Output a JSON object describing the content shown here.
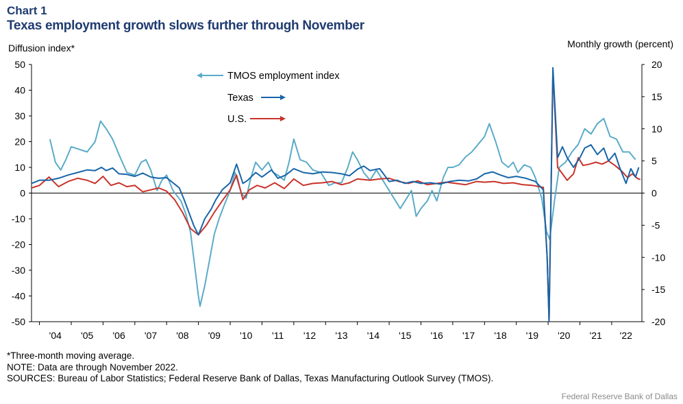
{
  "header": {
    "chart_label": "Chart 1",
    "title": "Texas employment growth slows further through November"
  },
  "footer": {
    "note_1": "*Three-month moving average.",
    "note_2": "NOTE: Data are through November 2022.",
    "note_3": "SOURCES: Bureau of Labor Statistics; Federal Reserve Bank of Dallas, Texas Manufacturing Outlook Survey (TMOS).",
    "credit": "Federal Reserve Bank of Dallas"
  },
  "colors": {
    "tmos": "#5aabc8",
    "texas": "#1765a8",
    "us": "#c8322a",
    "axis": "#000000"
  },
  "chart_data": {
    "type": "line",
    "xlabel": "",
    "ylabel_left": "Diffusion index*",
    "ylabel_right": "Monthly growth (percent)",
    "x_range": [
      2003.75,
      2022.95
    ],
    "ylim_left": [
      -50,
      50
    ],
    "ylim_right": [
      -20,
      20
    ],
    "yticks_left": [
      "50",
      "40",
      "30",
      "20",
      "10",
      "0",
      "-10",
      "-20",
      "-30",
      "-40",
      "-50"
    ],
    "yticks_right": [
      "20",
      "15",
      "10",
      "5",
      "0",
      "-5",
      "-10",
      "-15",
      "-20"
    ],
    "x_ticks": [
      {
        "label": "'04",
        "at": 2004.5
      },
      {
        "label": "'05",
        "at": 2005.5
      },
      {
        "label": "'06",
        "at": 2006.5
      },
      {
        "label": "'07",
        "at": 2007.5
      },
      {
        "label": "'08",
        "at": 2008.5
      },
      {
        "label": "'09",
        "at": 2009.5
      },
      {
        "label": "'10",
        "at": 2010.5
      },
      {
        "label": "'11",
        "at": 2011.5
      },
      {
        "label": "'12",
        "at": 2012.5
      },
      {
        "label": "'13",
        "at": 2013.5
      },
      {
        "label": "'14",
        "at": 2014.5
      },
      {
        "label": "'15",
        "at": 2015.5
      },
      {
        "label": "'16",
        "at": 2016.5
      },
      {
        "label": "'17",
        "at": 2017.5
      },
      {
        "label": "'18",
        "at": 2018.5
      },
      {
        "label": "'19",
        "at": 2019.5
      },
      {
        "label": "'20",
        "at": 2020.5
      },
      {
        "label": "'21",
        "at": 2021.5
      },
      {
        "label": "'22",
        "at": 2022.45
      }
    ],
    "legend": {
      "placement": "top-left inside plot",
      "entries": [
        "TMOS employment index",
        "Texas",
        "U.S."
      ]
    },
    "series": [
      {
        "name": "TMOS employment index",
        "axis": "left",
        "points": [
          [
            2004.33,
            21
          ],
          [
            2004.5,
            12
          ],
          [
            2004.67,
            9
          ],
          [
            2004.83,
            13
          ],
          [
            2005.0,
            18
          ],
          [
            2005.25,
            17
          ],
          [
            2005.5,
            16
          ],
          [
            2005.75,
            20
          ],
          [
            2005.92,
            28
          ],
          [
            2006.1,
            25
          ],
          [
            2006.3,
            21
          ],
          [
            2006.5,
            15
          ],
          [
            2006.75,
            8
          ],
          [
            2007.0,
            7
          ],
          [
            2007.2,
            12
          ],
          [
            2007.35,
            13
          ],
          [
            2007.5,
            9
          ],
          [
            2007.7,
            1
          ],
          [
            2007.85,
            5
          ],
          [
            2008.0,
            7
          ],
          [
            2008.2,
            1
          ],
          [
            2008.45,
            -3
          ],
          [
            2008.6,
            -8
          ],
          [
            2008.75,
            -15
          ],
          [
            2008.9,
            -30
          ],
          [
            2009.0,
            -40
          ],
          [
            2009.05,
            -44
          ],
          [
            2009.2,
            -36
          ],
          [
            2009.35,
            -26
          ],
          [
            2009.5,
            -16
          ],
          [
            2009.65,
            -10
          ],
          [
            2009.8,
            -5
          ],
          [
            2010.0,
            1
          ],
          [
            2010.15,
            8
          ],
          [
            2010.35,
            0
          ],
          [
            2010.5,
            -2
          ],
          [
            2010.65,
            6
          ],
          [
            2010.8,
            12
          ],
          [
            2011.0,
            9
          ],
          [
            2011.2,
            12
          ],
          [
            2011.35,
            8
          ],
          [
            2011.5,
            7
          ],
          [
            2011.7,
            5
          ],
          [
            2011.85,
            12
          ],
          [
            2012.0,
            21
          ],
          [
            2012.2,
            13
          ],
          [
            2012.4,
            12
          ],
          [
            2012.6,
            9
          ],
          [
            2012.85,
            8
          ],
          [
            2013.1,
            3
          ],
          [
            2013.3,
            4
          ],
          [
            2013.5,
            4
          ],
          [
            2013.7,
            10
          ],
          [
            2013.85,
            16
          ],
          [
            2014.0,
            13
          ],
          [
            2014.2,
            8
          ],
          [
            2014.4,
            5
          ],
          [
            2014.6,
            9
          ],
          [
            2014.8,
            5
          ],
          [
            2015.0,
            1
          ],
          [
            2015.2,
            -3
          ],
          [
            2015.35,
            -6
          ],
          [
            2015.5,
            -3
          ],
          [
            2015.7,
            1
          ],
          [
            2015.85,
            -9
          ],
          [
            2016.0,
            -6
          ],
          [
            2016.2,
            -3
          ],
          [
            2016.35,
            1
          ],
          [
            2016.5,
            -3
          ],
          [
            2016.7,
            6
          ],
          [
            2016.85,
            10
          ],
          [
            2017.0,
            10
          ],
          [
            2017.2,
            11
          ],
          [
            2017.4,
            14
          ],
          [
            2017.6,
            16
          ],
          [
            2017.8,
            19
          ],
          [
            2018.0,
            22
          ],
          [
            2018.15,
            27
          ],
          [
            2018.35,
            20
          ],
          [
            2018.55,
            12
          ],
          [
            2018.75,
            10
          ],
          [
            2018.9,
            12
          ],
          [
            2019.05,
            8
          ],
          [
            2019.25,
            11
          ],
          [
            2019.45,
            10
          ],
          [
            2019.6,
            6
          ],
          [
            2019.8,
            -2
          ],
          [
            2019.95,
            -15
          ],
          [
            2020.05,
            -18
          ],
          [
            2020.2,
            -3
          ],
          [
            2020.35,
            10
          ],
          [
            2020.55,
            12
          ],
          [
            2020.75,
            16
          ],
          [
            2020.95,
            19
          ],
          [
            2021.15,
            25
          ],
          [
            2021.35,
            23
          ],
          [
            2021.55,
            27
          ],
          [
            2021.75,
            29
          ],
          [
            2021.95,
            22
          ],
          [
            2022.15,
            21
          ],
          [
            2022.35,
            16
          ],
          [
            2022.55,
            16
          ],
          [
            2022.75,
            13
          ]
        ]
      },
      {
        "name": "Texas",
        "axis": "right",
        "points": [
          [
            2003.75,
            1.5
          ],
          [
            2004.0,
            2.0
          ],
          [
            2004.3,
            2.0
          ],
          [
            2004.6,
            2.3
          ],
          [
            2004.9,
            2.8
          ],
          [
            2005.2,
            3.2
          ],
          [
            2005.5,
            3.6
          ],
          [
            2005.75,
            3.5
          ],
          [
            2005.95,
            4.0
          ],
          [
            2006.1,
            3.5
          ],
          [
            2006.3,
            3.9
          ],
          [
            2006.5,
            3.0
          ],
          [
            2006.75,
            2.9
          ],
          [
            2007.0,
            2.6
          ],
          [
            2007.25,
            3.1
          ],
          [
            2007.5,
            2.5
          ],
          [
            2007.75,
            2.3
          ],
          [
            2008.0,
            2.4
          ],
          [
            2008.2,
            1.6
          ],
          [
            2008.4,
            0.8
          ],
          [
            2008.55,
            -1.0
          ],
          [
            2008.7,
            -3.0
          ],
          [
            2008.85,
            -5.0
          ],
          [
            2009.0,
            -6.5
          ],
          [
            2009.2,
            -4.0
          ],
          [
            2009.4,
            -2.5
          ],
          [
            2009.55,
            -1.0
          ],
          [
            2009.75,
            0.5
          ],
          [
            2010.0,
            1.6
          ],
          [
            2010.2,
            4.5
          ],
          [
            2010.4,
            1.5
          ],
          [
            2010.55,
            2.0
          ],
          [
            2010.8,
            3.2
          ],
          [
            2011.0,
            2.5
          ],
          [
            2011.3,
            3.6
          ],
          [
            2011.5,
            2.3
          ],
          [
            2011.75,
            2.8
          ],
          [
            2012.0,
            3.8
          ],
          [
            2012.3,
            3.2
          ],
          [
            2012.6,
            3.0
          ],
          [
            2012.9,
            3.3
          ],
          [
            2013.2,
            3.2
          ],
          [
            2013.5,
            3.0
          ],
          [
            2013.75,
            2.7
          ],
          [
            2014.0,
            3.7
          ],
          [
            2014.2,
            4.2
          ],
          [
            2014.4,
            3.5
          ],
          [
            2014.7,
            3.8
          ],
          [
            2015.0,
            1.8
          ],
          [
            2015.25,
            2.0
          ],
          [
            2015.5,
            1.5
          ],
          [
            2015.75,
            1.8
          ],
          [
            2016.0,
            1.5
          ],
          [
            2016.3,
            1.6
          ],
          [
            2016.6,
            1.4
          ],
          [
            2016.9,
            1.8
          ],
          [
            2017.2,
            2.0
          ],
          [
            2017.5,
            1.9
          ],
          [
            2017.75,
            2.2
          ],
          [
            2018.0,
            3.0
          ],
          [
            2018.25,
            3.3
          ],
          [
            2018.5,
            2.8
          ],
          [
            2018.75,
            2.4
          ],
          [
            2019.0,
            2.6
          ],
          [
            2019.3,
            2.3
          ],
          [
            2019.6,
            1.8
          ],
          [
            2019.85,
            0.5
          ],
          [
            2019.97,
            -10.0
          ],
          [
            2020.03,
            -20.0
          ],
          [
            2020.15,
            19.5
          ],
          [
            2020.3,
            5.5
          ],
          [
            2020.45,
            7.2
          ],
          [
            2020.6,
            5.5
          ],
          [
            2020.8,
            4.0
          ],
          [
            2021.0,
            5.5
          ],
          [
            2021.15,
            7.0
          ],
          [
            2021.35,
            7.5
          ],
          [
            2021.55,
            6.0
          ],
          [
            2021.75,
            7.0
          ],
          [
            2021.9,
            5.0
          ],
          [
            2022.1,
            6.2
          ],
          [
            2022.25,
            4.0
          ],
          [
            2022.45,
            1.5
          ],
          [
            2022.6,
            3.8
          ],
          [
            2022.75,
            2.5
          ],
          [
            2022.85,
            4.0
          ]
        ]
      },
      {
        "name": "U.S.",
        "axis": "right",
        "points": [
          [
            2003.75,
            0.8
          ],
          [
            2004.0,
            1.2
          ],
          [
            2004.3,
            2.5
          ],
          [
            2004.6,
            1.0
          ],
          [
            2004.9,
            1.8
          ],
          [
            2005.2,
            2.3
          ],
          [
            2005.5,
            2.0
          ],
          [
            2005.75,
            1.5
          ],
          [
            2006.0,
            2.6
          ],
          [
            2006.25,
            1.2
          ],
          [
            2006.5,
            1.6
          ],
          [
            2006.75,
            1.0
          ],
          [
            2007.0,
            1.2
          ],
          [
            2007.25,
            0.2
          ],
          [
            2007.5,
            0.5
          ],
          [
            2007.75,
            0.8
          ],
          [
            2008.0,
            0.3
          ],
          [
            2008.25,
            -1.0
          ],
          [
            2008.5,
            -3.0
          ],
          [
            2008.75,
            -5.5
          ],
          [
            2009.0,
            -6.5
          ],
          [
            2009.25,
            -5.0
          ],
          [
            2009.5,
            -3.0
          ],
          [
            2009.75,
            -1.2
          ],
          [
            2010.0,
            0.5
          ],
          [
            2010.2,
            2.8
          ],
          [
            2010.4,
            -1.0
          ],
          [
            2010.6,
            0.5
          ],
          [
            2010.85,
            1.2
          ],
          [
            2011.1,
            0.8
          ],
          [
            2011.4,
            1.6
          ],
          [
            2011.7,
            0.7
          ],
          [
            2012.0,
            2.2
          ],
          [
            2012.3,
            1.2
          ],
          [
            2012.6,
            1.5
          ],
          [
            2012.9,
            1.6
          ],
          [
            2013.2,
            1.8
          ],
          [
            2013.5,
            1.3
          ],
          [
            2013.75,
            1.6
          ],
          [
            2014.0,
            2.2
          ],
          [
            2014.4,
            2.0
          ],
          [
            2014.7,
            2.2
          ],
          [
            2015.0,
            2.3
          ],
          [
            2015.3,
            1.8
          ],
          [
            2015.6,
            1.5
          ],
          [
            2015.9,
            1.9
          ],
          [
            2016.2,
            1.3
          ],
          [
            2016.5,
            1.5
          ],
          [
            2016.8,
            1.7
          ],
          [
            2017.1,
            1.5
          ],
          [
            2017.4,
            1.3
          ],
          [
            2017.75,
            1.8
          ],
          [
            2018.0,
            1.7
          ],
          [
            2018.3,
            1.8
          ],
          [
            2018.6,
            1.5
          ],
          [
            2018.9,
            1.6
          ],
          [
            2019.2,
            1.3
          ],
          [
            2019.5,
            1.2
          ],
          [
            2019.85,
            0.9
          ],
          [
            2019.97,
            -10.0
          ],
          [
            2020.03,
            -20.0
          ],
          [
            2020.15,
            19.0
          ],
          [
            2020.3,
            4.0
          ],
          [
            2020.45,
            3.0
          ],
          [
            2020.6,
            2.0
          ],
          [
            2020.8,
            3.0
          ],
          [
            2020.95,
            5.5
          ],
          [
            2021.1,
            4.3
          ],
          [
            2021.3,
            4.5
          ],
          [
            2021.5,
            4.8
          ],
          [
            2021.7,
            4.5
          ],
          [
            2021.9,
            5.0
          ],
          [
            2022.1,
            4.3
          ],
          [
            2022.3,
            3.5
          ],
          [
            2022.5,
            2.4
          ],
          [
            2022.65,
            3.0
          ],
          [
            2022.8,
            2.3
          ],
          [
            2022.9,
            2.1
          ]
        ]
      }
    ]
  }
}
